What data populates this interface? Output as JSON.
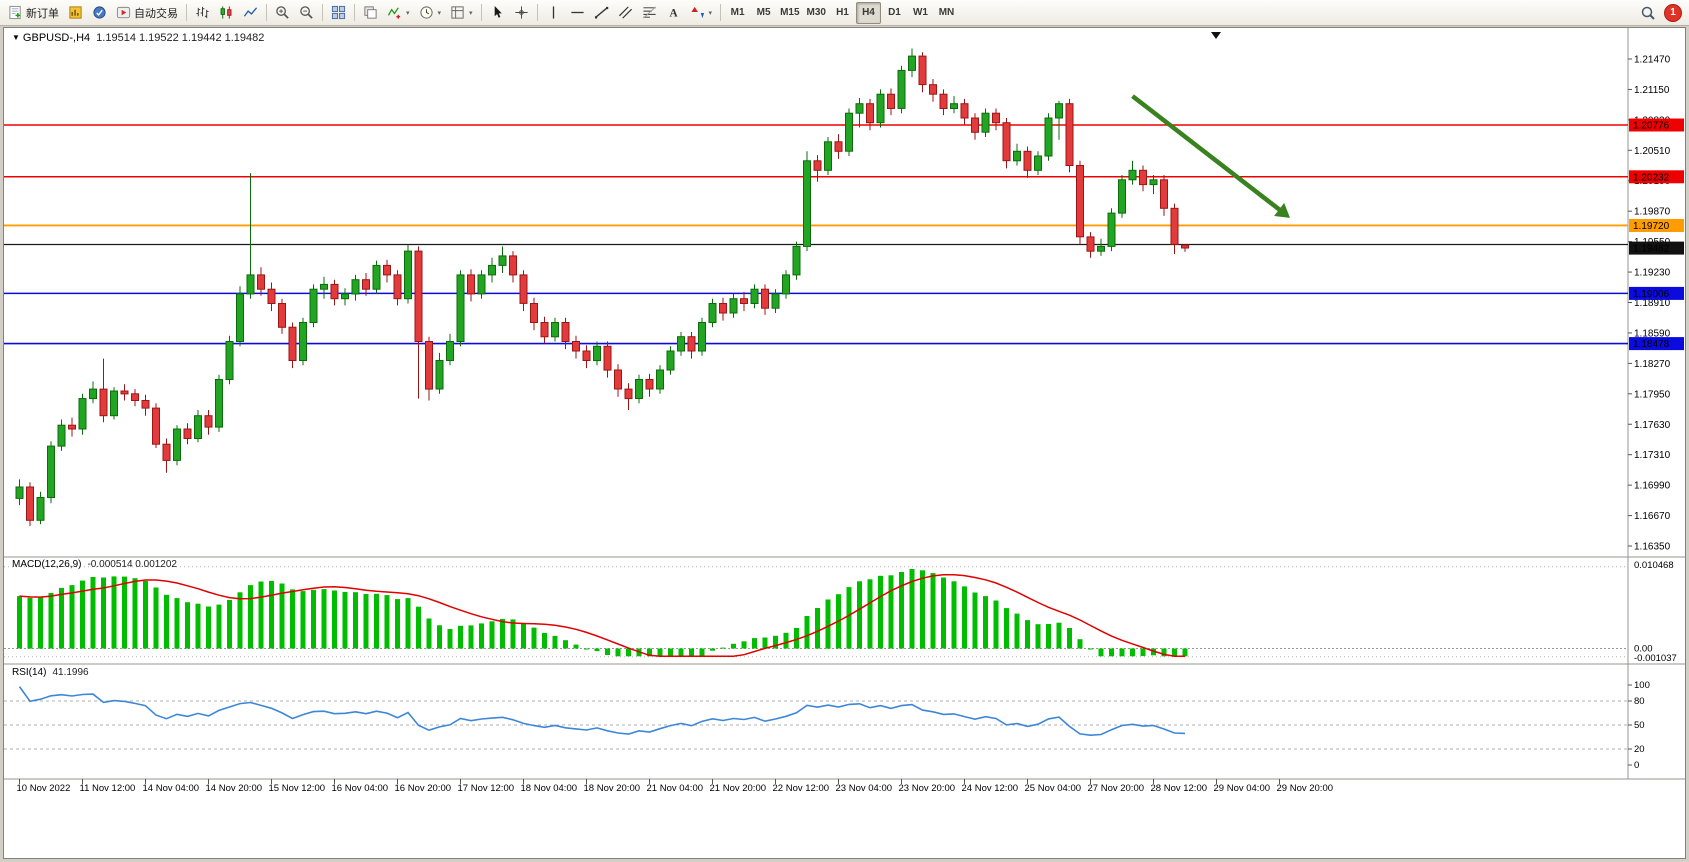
{
  "toolbar": {
    "new_order_label": "新订单",
    "auto_trading_label": "自动交易",
    "timeframes": [
      "M1",
      "M5",
      "M15",
      "M30",
      "H1",
      "H4",
      "D1",
      "W1",
      "MN"
    ],
    "active_timeframe": "H4",
    "notification_count": "1"
  },
  "chart": {
    "symbol": "GBPUSD-,H4",
    "ohlc": "1.19514 1.19522 1.19442 1.19482"
  },
  "chart_data": {
    "type": "candlestick",
    "symbol": "GBPUSD-",
    "timeframe": "H4",
    "ohlc_display": {
      "open": "1.19514",
      "high": "1.19522",
      "low": "1.19442",
      "close": "1.19482"
    },
    "colors": {
      "bull": "#22a522",
      "bear": "#e23b3b",
      "bull_edge": "#0c6b0c",
      "bear_edge": "#9c1616"
    },
    "y_axis": {
      "labels": [
        "1.21470",
        "1.21150",
        "1.20830",
        "1.20510",
        "1.20190",
        "1.19870",
        "1.19550",
        "1.19230",
        "1.18910",
        "1.18590",
        "1.18270",
        "1.17950",
        "1.17630",
        "1.17310",
        "1.16990",
        "1.16670",
        "1.16350"
      ]
    },
    "time_labels": [
      "10 Nov 2022",
      "11 Nov 12:00",
      "14 Nov 04:00",
      "14 Nov 20:00",
      "15 Nov 12:00",
      "16 Nov 04:00",
      "16 Nov 20:00",
      "17 Nov 12:00",
      "18 Nov 04:00",
      "18 Nov 20:00",
      "21 Nov 04:00",
      "21 Nov 20:00",
      "22 Nov 12:00",
      "23 Nov 04:00",
      "23 Nov 20:00",
      "24 Nov 12:00",
      "25 Nov 04:00",
      "27 Nov 20:00",
      "28 Nov 12:00",
      "29 Nov 04:00",
      "29 Nov 20:00"
    ],
    "candles": [
      [
        1.1685,
        1.1705,
        1.1678,
        1.1697
      ],
      [
        1.1697,
        1.1702,
        1.1656,
        1.1662
      ],
      [
        1.1662,
        1.1692,
        1.1658,
        1.1686
      ],
      [
        1.1686,
        1.1745,
        1.168,
        1.174
      ],
      [
        1.174,
        1.1768,
        1.1735,
        1.1762
      ],
      [
        1.1762,
        1.177,
        1.175,
        1.1758
      ],
      [
        1.1758,
        1.1795,
        1.1752,
        1.179
      ],
      [
        1.179,
        1.1808,
        1.1785,
        1.18
      ],
      [
        1.18,
        1.1832,
        1.1765,
        1.1772
      ],
      [
        1.1772,
        1.1802,
        1.1768,
        1.1798
      ],
      [
        1.1798,
        1.1805,
        1.1788,
        1.1795
      ],
      [
        1.1795,
        1.18,
        1.1782,
        1.1788
      ],
      [
        1.1788,
        1.1794,
        1.1772,
        1.178
      ],
      [
        1.178,
        1.1785,
        1.1738,
        1.1742
      ],
      [
        1.1742,
        1.1748,
        1.1712,
        1.1725
      ],
      [
        1.1725,
        1.1762,
        1.172,
        1.1758
      ],
      [
        1.1758,
        1.1764,
        1.1742,
        1.1748
      ],
      [
        1.1748,
        1.1778,
        1.1744,
        1.1772
      ],
      [
        1.1772,
        1.1778,
        1.1752,
        1.176
      ],
      [
        1.176,
        1.1815,
        1.1755,
        1.181
      ],
      [
        1.181,
        1.1856,
        1.1805,
        1.185
      ],
      [
        1.185,
        1.1908,
        1.1845,
        1.19
      ],
      [
        1.19,
        1.2027,
        1.1895,
        1.192
      ],
      [
        1.192,
        1.1928,
        1.1898,
        1.1905
      ],
      [
        1.1905,
        1.1912,
        1.1882,
        1.189
      ],
      [
        1.189,
        1.1895,
        1.1858,
        1.1865
      ],
      [
        1.1865,
        1.187,
        1.1822,
        1.183
      ],
      [
        1.183,
        1.1875,
        1.1825,
        1.187
      ],
      [
        1.187,
        1.191,
        1.1865,
        1.1905
      ],
      [
        1.1905,
        1.1918,
        1.1895,
        1.191
      ],
      [
        1.191,
        1.1915,
        1.1888,
        1.1895
      ],
      [
        1.1895,
        1.1906,
        1.1888,
        1.19
      ],
      [
        1.19,
        1.192,
        1.1893,
        1.1915
      ],
      [
        1.1915,
        1.1922,
        1.1898,
        1.1905
      ],
      [
        1.1905,
        1.1935,
        1.19,
        1.193
      ],
      [
        1.193,
        1.1936,
        1.1912,
        1.192
      ],
      [
        1.192,
        1.1925,
        1.1888,
        1.1895
      ],
      [
        1.1895,
        1.1952,
        1.189,
        1.1945
      ],
      [
        1.1945,
        1.195,
        1.179,
        1.185
      ],
      [
        1.185,
        1.1855,
        1.1788,
        1.18
      ],
      [
        1.18,
        1.1838,
        1.1795,
        1.183
      ],
      [
        1.183,
        1.1858,
        1.1825,
        1.185
      ],
      [
        1.185,
        1.1925,
        1.1845,
        1.192
      ],
      [
        1.192,
        1.1926,
        1.1892,
        1.19
      ],
      [
        1.19,
        1.1925,
        1.1895,
        1.192
      ],
      [
        1.192,
        1.1938,
        1.1912,
        1.193
      ],
      [
        1.193,
        1.195,
        1.1922,
        1.194
      ],
      [
        1.194,
        1.1945,
        1.1912,
        1.192
      ],
      [
        1.192,
        1.1925,
        1.1882,
        1.189
      ],
      [
        1.189,
        1.1896,
        1.1862,
        1.187
      ],
      [
        1.187,
        1.1876,
        1.1848,
        1.1855
      ],
      [
        1.1855,
        1.1875,
        1.185,
        1.187
      ],
      [
        1.187,
        1.1875,
        1.1842,
        1.185
      ],
      [
        1.185,
        1.1856,
        1.1832,
        1.184
      ],
      [
        1.184,
        1.1846,
        1.1822,
        1.183
      ],
      [
        1.183,
        1.185,
        1.1825,
        1.1845
      ],
      [
        1.1845,
        1.185,
        1.1812,
        1.182
      ],
      [
        1.182,
        1.1826,
        1.1792,
        1.18
      ],
      [
        1.18,
        1.1806,
        1.1778,
        1.179
      ],
      [
        1.179,
        1.1815,
        1.1785,
        1.181
      ],
      [
        1.181,
        1.1816,
        1.1792,
        1.18
      ],
      [
        1.18,
        1.1825,
        1.1795,
        1.182
      ],
      [
        1.182,
        1.1845,
        1.1815,
        1.184
      ],
      [
        1.184,
        1.186,
        1.1835,
        1.1855
      ],
      [
        1.1855,
        1.186,
        1.1832,
        1.184
      ],
      [
        1.184,
        1.1875,
        1.1835,
        1.187
      ],
      [
        1.187,
        1.1895,
        1.1865,
        1.189
      ],
      [
        1.189,
        1.1896,
        1.1872,
        1.188
      ],
      [
        1.188,
        1.19,
        1.1875,
        1.1895
      ],
      [
        1.1895,
        1.1902,
        1.1882,
        1.189
      ],
      [
        1.189,
        1.191,
        1.1885,
        1.1905
      ],
      [
        1.1905,
        1.191,
        1.1878,
        1.1885
      ],
      [
        1.1885,
        1.1905,
        1.188,
        1.19
      ],
      [
        1.19,
        1.1925,
        1.1895,
        1.192
      ],
      [
        1.192,
        1.1955,
        1.1915,
        1.195
      ],
      [
        1.195,
        1.205,
        1.1945,
        1.204
      ],
      [
        1.204,
        1.2046,
        1.2018,
        1.203
      ],
      [
        1.203,
        1.2065,
        1.2025,
        1.206
      ],
      [
        1.206,
        1.2068,
        1.2042,
        1.205
      ],
      [
        1.205,
        1.2095,
        1.2045,
        1.209
      ],
      [
        1.209,
        1.2106,
        1.2075,
        1.21
      ],
      [
        1.21,
        1.2105,
        1.2072,
        1.208
      ],
      [
        1.208,
        1.2115,
        1.2075,
        1.211
      ],
      [
        1.211,
        1.2116,
        1.2088,
        1.2095
      ],
      [
        1.2095,
        1.214,
        1.209,
        1.2135
      ],
      [
        1.2135,
        1.2158,
        1.2128,
        1.215
      ],
      [
        1.215,
        1.2154,
        1.2112,
        1.212
      ],
      [
        1.212,
        1.2126,
        1.2102,
        1.211
      ],
      [
        1.211,
        1.2115,
        1.2088,
        1.2095
      ],
      [
        1.2095,
        1.2108,
        1.209,
        1.21
      ],
      [
        1.21,
        1.2105,
        1.2078,
        1.2085
      ],
      [
        1.2085,
        1.209,
        1.2062,
        1.207
      ],
      [
        1.207,
        1.2095,
        1.2065,
        1.209
      ],
      [
        1.209,
        1.2095,
        1.2072,
        1.208
      ],
      [
        1.208,
        1.2085,
        1.2032,
        1.204
      ],
      [
        1.204,
        1.2058,
        1.2035,
        1.205
      ],
      [
        1.205,
        1.2055,
        1.2022,
        1.203
      ],
      [
        1.203,
        1.205,
        1.2025,
        1.2045
      ],
      [
        1.2045,
        1.209,
        1.204,
        1.2085
      ],
      [
        1.2085,
        1.2103,
        1.2062,
        1.21
      ],
      [
        1.21,
        1.2105,
        1.2028,
        1.2035
      ],
      [
        1.2035,
        1.204,
        1.1952,
        1.196
      ],
      [
        1.196,
        1.1965,
        1.1938,
        1.1945
      ],
      [
        1.1945,
        1.1958,
        1.194,
        1.195
      ],
      [
        1.195,
        1.199,
        1.1945,
        1.1985
      ],
      [
        1.1985,
        1.2025,
        1.198,
        1.202
      ],
      [
        1.202,
        1.204,
        1.2015,
        1.203
      ],
      [
        1.203,
        1.2035,
        1.2008,
        1.2015
      ],
      [
        1.2015,
        1.2025,
        1.2005,
        1.202
      ],
      [
        1.202,
        1.2025,
        1.1982,
        1.199
      ],
      [
        1.199,
        1.1995,
        1.1942,
        1.1952
      ],
      [
        1.19514,
        1.19522,
        1.19442,
        1.19482
      ]
    ],
    "hlines": [
      {
        "price": 1.20776,
        "color": "#ef0000",
        "width": 1.4,
        "label": "1.20776"
      },
      {
        "price": 1.20232,
        "color": "#ef0000",
        "width": 1.4,
        "label": "1.20232"
      },
      {
        "price": 1.1972,
        "color": "#ff9c00",
        "width": 1.8,
        "label": "1.19720"
      },
      {
        "price": 1.1952,
        "color": "#1a1a1a",
        "width": 1.2,
        "label": ""
      },
      {
        "price": 1.19006,
        "color": "#0b0bdf",
        "width": 1.6,
        "label": "1.19006"
      },
      {
        "price": 1.18478,
        "color": "#0b0bdf",
        "width": 1.6,
        "label": "1.18478"
      }
    ],
    "current_price": {
      "value": 1.19482,
      "label": "1.19482",
      "bg": "#111111"
    },
    "trend_arrow": {
      "bar_from": 106,
      "price_from": 1.2108,
      "bar_to": 121,
      "price_to": 1.198,
      "color": "#3a8220"
    },
    "macd": {
      "label": "MACD(12,26,9)",
      "values_label": "-0.000514 0.001202",
      "max": 0.010468,
      "min": -0.001037,
      "axis_labels": [
        "0.010468",
        "0.00",
        "-0.001037"
      ],
      "histogram_color": "#00bd00",
      "signal_color": "#e00000"
    },
    "rsi": {
      "label": "RSI(14)",
      "value_label": "41.1996",
      "current": 41.1996,
      "levels": [
        100,
        80,
        50,
        20,
        0
      ],
      "line_color": "#3d86d8"
    }
  }
}
